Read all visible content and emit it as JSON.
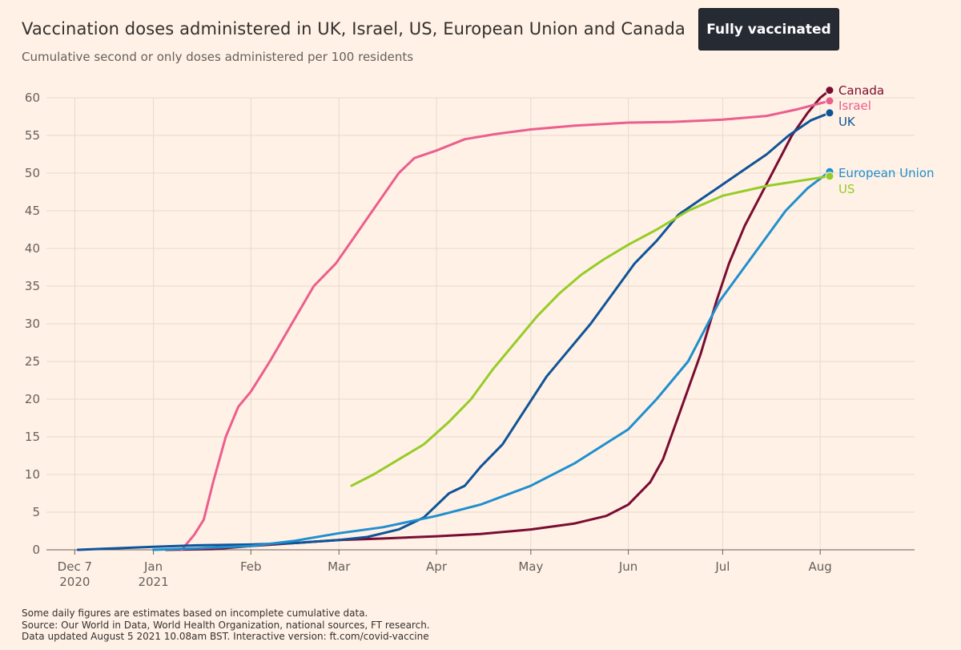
{
  "header": {
    "title": "Vaccination doses administered in UK, Israel, US, European Union and Canada",
    "subtitle": "Cumulative second or only doses administered per 100 residents"
  },
  "toggle": {
    "label": "Fully vaccinated",
    "active": true
  },
  "footnotes": [
    "Some daily figures are estimates based on incomplete cumulative data.",
    "Source: Our World in Data, World Health Organization, national sources, FT research.",
    "Data updated August 5 2021 10.08am BST. Interactive version: ft.com/covid-vaccine"
  ],
  "chart_data": {
    "type": "line",
    "x_axis": {
      "type": "date",
      "range": [
        "2020-11-28",
        "2021-08-31"
      ],
      "ticks": [
        {
          "date": "2020-12-07",
          "line1": "Dec 7",
          "line2": "2020"
        },
        {
          "date": "2021-01-01",
          "line1": "Jan",
          "line2": "2021"
        },
        {
          "date": "2021-02-01",
          "line1": "Feb",
          "line2": ""
        },
        {
          "date": "2021-03-01",
          "line1": "Mar",
          "line2": ""
        },
        {
          "date": "2021-04-01",
          "line1": "Apr",
          "line2": ""
        },
        {
          "date": "2021-05-01",
          "line1": "May",
          "line2": ""
        },
        {
          "date": "2021-06-01",
          "line1": "Jun",
          "line2": ""
        },
        {
          "date": "2021-07-01",
          "line1": "Jul",
          "line2": ""
        },
        {
          "date": "2021-08-01",
          "line1": "Aug",
          "line2": ""
        }
      ]
    },
    "y_axis": {
      "ylim": [
        0,
        60
      ],
      "ticks": [
        0,
        5,
        10,
        15,
        20,
        25,
        30,
        35,
        40,
        45,
        50,
        55,
        60
      ]
    },
    "grid": true,
    "colors": {
      "background": "#fff1e5",
      "grid": "#e6d9ce",
      "axis": "#66605c",
      "text": "#66605c"
    },
    "series": [
      {
        "name": "Canada",
        "color": "#7a0c33",
        "points": [
          [
            "2021-01-05",
            0
          ],
          [
            "2021-01-20",
            0.1
          ],
          [
            "2021-02-01",
            0.5
          ],
          [
            "2021-02-15",
            0.9
          ],
          [
            "2021-03-01",
            1.3
          ],
          [
            "2021-03-15",
            1.5
          ],
          [
            "2021-04-01",
            1.8
          ],
          [
            "2021-04-15",
            2.1
          ],
          [
            "2021-05-01",
            2.7
          ],
          [
            "2021-05-15",
            3.5
          ],
          [
            "2021-05-25",
            4.5
          ],
          [
            "2021-06-01",
            6
          ],
          [
            "2021-06-08",
            9
          ],
          [
            "2021-06-12",
            12
          ],
          [
            "2021-06-18",
            19
          ],
          [
            "2021-06-24",
            26
          ],
          [
            "2021-06-29",
            33
          ],
          [
            "2021-07-03",
            38
          ],
          [
            "2021-07-08",
            43
          ],
          [
            "2021-07-13",
            47
          ],
          [
            "2021-07-18",
            51
          ],
          [
            "2021-07-23",
            55
          ],
          [
            "2021-07-28",
            58
          ],
          [
            "2021-08-01",
            60
          ],
          [
            "2021-08-04",
            61
          ]
        ]
      },
      {
        "name": "Israel",
        "color": "#eb5e8d",
        "points": [
          [
            "2021-01-10",
            0
          ],
          [
            "2021-01-14",
            2
          ],
          [
            "2021-01-17",
            4
          ],
          [
            "2021-01-20",
            9
          ],
          [
            "2021-01-24",
            15
          ],
          [
            "2021-01-28",
            19
          ],
          [
            "2021-02-01",
            21
          ],
          [
            "2021-02-07",
            25
          ],
          [
            "2021-02-14",
            30
          ],
          [
            "2021-02-21",
            35
          ],
          [
            "2021-02-28",
            38
          ],
          [
            "2021-03-05",
            41
          ],
          [
            "2021-03-10",
            44
          ],
          [
            "2021-03-15",
            47
          ],
          [
            "2021-03-20",
            50
          ],
          [
            "2021-03-25",
            52
          ],
          [
            "2021-04-01",
            53
          ],
          [
            "2021-04-10",
            54.5
          ],
          [
            "2021-04-20",
            55.2
          ],
          [
            "2021-05-01",
            55.8
          ],
          [
            "2021-05-15",
            56.3
          ],
          [
            "2021-06-01",
            56.7
          ],
          [
            "2021-06-15",
            56.8
          ],
          [
            "2021-07-01",
            57.1
          ],
          [
            "2021-07-15",
            57.6
          ],
          [
            "2021-07-25",
            58.5
          ],
          [
            "2021-08-04",
            59.6
          ]
        ]
      },
      {
        "name": "UK",
        "color": "#0f5499",
        "points": [
          [
            "2020-12-08",
            0
          ],
          [
            "2020-12-20",
            0.2
          ],
          [
            "2021-01-01",
            0.4
          ],
          [
            "2021-01-15",
            0.6
          ],
          [
            "2021-02-01",
            0.7
          ],
          [
            "2021-02-15",
            0.9
          ],
          [
            "2021-03-01",
            1.3
          ],
          [
            "2021-03-10",
            1.7
          ],
          [
            "2021-03-20",
            2.7
          ],
          [
            "2021-03-28",
            4.3
          ],
          [
            "2021-04-05",
            7.5
          ],
          [
            "2021-04-10",
            8.5
          ],
          [
            "2021-04-15",
            11
          ],
          [
            "2021-04-22",
            14
          ],
          [
            "2021-04-29",
            18.5
          ],
          [
            "2021-05-06",
            23
          ],
          [
            "2021-05-13",
            26.5
          ],
          [
            "2021-05-20",
            30
          ],
          [
            "2021-05-27",
            34
          ],
          [
            "2021-06-03",
            38
          ],
          [
            "2021-06-10",
            41
          ],
          [
            "2021-06-17",
            44.5
          ],
          [
            "2021-06-24",
            46.5
          ],
          [
            "2021-07-01",
            48.5
          ],
          [
            "2021-07-08",
            50.5
          ],
          [
            "2021-07-15",
            52.5
          ],
          [
            "2021-07-22",
            55
          ],
          [
            "2021-07-29",
            57
          ],
          [
            "2021-08-04",
            58
          ]
        ]
      },
      {
        "name": "European Union",
        "color": "#1f8fce",
        "points": [
          [
            "2021-01-01",
            0
          ],
          [
            "2021-01-15",
            0.2
          ],
          [
            "2021-02-01",
            0.5
          ],
          [
            "2021-02-15",
            1.2
          ],
          [
            "2021-03-01",
            2.2
          ],
          [
            "2021-03-15",
            3
          ],
          [
            "2021-04-01",
            4.5
          ],
          [
            "2021-04-15",
            6
          ],
          [
            "2021-05-01",
            8.5
          ],
          [
            "2021-05-15",
            11.5
          ],
          [
            "2021-06-01",
            16
          ],
          [
            "2021-06-10",
            20
          ],
          [
            "2021-06-20",
            25
          ],
          [
            "2021-06-30",
            33
          ],
          [
            "2021-07-07",
            37
          ],
          [
            "2021-07-14",
            41
          ],
          [
            "2021-07-21",
            45
          ],
          [
            "2021-07-28",
            48
          ],
          [
            "2021-08-04",
            50.2
          ]
        ]
      },
      {
        "name": "US",
        "color": "#96cc28",
        "points": [
          [
            "2021-03-05",
            8.5
          ],
          [
            "2021-03-12",
            10
          ],
          [
            "2021-03-20",
            12
          ],
          [
            "2021-03-28",
            14
          ],
          [
            "2021-04-05",
            17
          ],
          [
            "2021-04-12",
            20
          ],
          [
            "2021-04-19",
            24
          ],
          [
            "2021-04-26",
            27.5
          ],
          [
            "2021-05-03",
            31
          ],
          [
            "2021-05-10",
            34
          ],
          [
            "2021-05-17",
            36.5
          ],
          [
            "2021-05-24",
            38.5
          ],
          [
            "2021-06-01",
            40.5
          ],
          [
            "2021-06-10",
            42.5
          ],
          [
            "2021-06-20",
            45
          ],
          [
            "2021-07-01",
            47
          ],
          [
            "2021-07-15",
            48.3
          ],
          [
            "2021-08-04",
            49.6
          ]
        ]
      }
    ]
  }
}
